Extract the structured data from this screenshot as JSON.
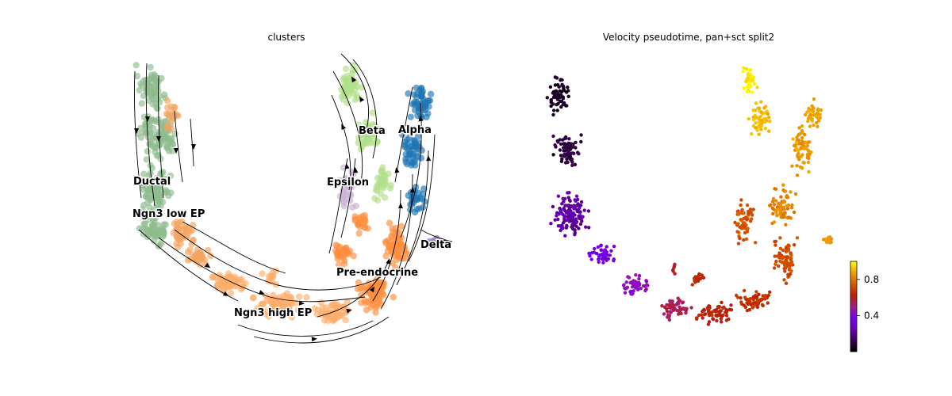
{
  "chart_data": [
    {
      "type": "scatter",
      "subtype": "umap-embedding-with-velocity-streamlines",
      "title": "clusters",
      "axes_visible": false,
      "grid": false,
      "legend": "on-data",
      "clusters": [
        {
          "name": "Ductal",
          "color": "#8fbc8f"
        },
        {
          "name": "Ngn3 low EP",
          "color": "#f4a460"
        },
        {
          "name": "Ngn3 high EP",
          "color": "#fdae6b"
        },
        {
          "name": "Pre-endocrine",
          "color": "#fd8d3c"
        },
        {
          "name": "Beta",
          "color": "#b2df8a"
        },
        {
          "name": "Alpha",
          "color": "#1f77b4"
        },
        {
          "name": "Delta",
          "color": "#9e86c8"
        },
        {
          "name": "Epsilon",
          "color": "#cab2d6"
        }
      ],
      "streamlines": true
    },
    {
      "type": "scatter",
      "subtype": "umap-embedding-continuous-color",
      "title": "Velocity pseudotime, pan+sct split2",
      "axes_visible": false,
      "grid": false,
      "colormap": "gnuplot",
      "colorbar": {
        "range": [
          0.0,
          1.0
        ],
        "ticks": [
          0.4,
          0.8
        ],
        "tick_labels": [
          "0.4",
          "0.8"
        ],
        "placement": "right"
      }
    }
  ]
}
